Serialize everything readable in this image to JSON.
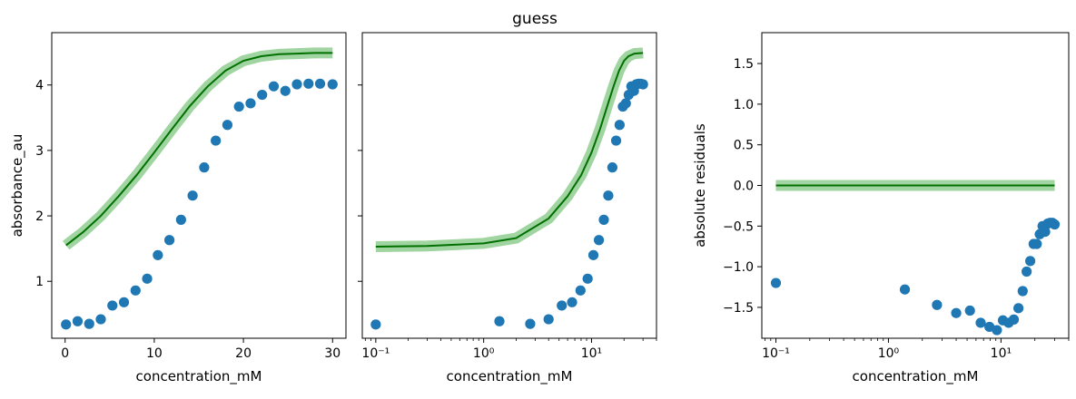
{
  "figure": {
    "title": "guess"
  },
  "colors": {
    "points": "#1f77b4",
    "fit_line": "#007000",
    "fit_band": "#2ca02c"
  },
  "chart_data": [
    {
      "type": "scatter",
      "title": "",
      "xlabel": "concentration_mM",
      "ylabel": "absorbance_au",
      "x_scale": "linear",
      "xlim": [
        -1.5,
        31.5
      ],
      "ylim": [
        0.13,
        4.8
      ],
      "x_ticks": [
        0,
        10,
        20,
        30
      ],
      "x_tick_labels": [
        "0",
        "10",
        "20",
        "30"
      ],
      "y_ticks": [
        1,
        2,
        3,
        4
      ],
      "y_tick_labels": [
        "1",
        "2",
        "3",
        "4"
      ],
      "series": [
        {
          "kind": "points",
          "x": [
            0.1,
            1.4,
            2.7,
            4.0,
            5.3,
            6.6,
            7.9,
            9.2,
            10.4,
            11.7,
            13.0,
            14.3,
            15.6,
            16.9,
            18.2,
            19.5,
            20.8,
            22.1,
            23.4,
            24.7,
            26.0,
            27.3,
            28.6,
            30.0
          ],
          "y": [
            0.34,
            0.39,
            0.35,
            0.42,
            0.63,
            0.68,
            0.86,
            1.04,
            1.4,
            1.63,
            1.94,
            2.31,
            2.74,
            3.15,
            3.39,
            3.67,
            3.72,
            3.85,
            3.98,
            3.91,
            4.01,
            4.02,
            4.02,
            4.01
          ]
        },
        {
          "kind": "fit",
          "x": [
            0.1,
            2,
            4,
            6,
            8,
            10,
            12,
            14,
            16,
            18,
            20,
            22,
            24,
            26,
            28,
            30
          ],
          "y": [
            1.55,
            1.75,
            2.0,
            2.3,
            2.62,
            2.97,
            3.33,
            3.68,
            3.98,
            4.22,
            4.37,
            4.44,
            4.47,
            4.48,
            4.49,
            4.49
          ]
        }
      ]
    },
    {
      "type": "scatter",
      "title": "guess",
      "xlabel": "concentration_mM",
      "ylabel": "",
      "x_scale": "log",
      "xlim": [
        0.075,
        40
      ],
      "ylim": [
        0.13,
        4.8
      ],
      "x_ticks": [
        0.1,
        1,
        10
      ],
      "x_tick_labels": [
        "10⁻¹",
        "10⁰",
        "10¹"
      ],
      "y_ticks": [
        1,
        2,
        3,
        4
      ],
      "y_tick_labels": [
        "",
        "",
        "",
        ""
      ],
      "series": [
        {
          "kind": "points",
          "x": [
            0.1,
            1.4,
            2.7,
            4.0,
            5.3,
            6.6,
            7.9,
            9.2,
            10.4,
            11.7,
            13.0,
            14.3,
            15.6,
            16.9,
            18.2,
            19.5,
            20.8,
            22.1,
            23.4,
            24.7,
            26.0,
            27.3,
            28.6,
            30.0
          ],
          "y": [
            0.34,
            0.39,
            0.35,
            0.42,
            0.63,
            0.68,
            0.86,
            1.04,
            1.4,
            1.63,
            1.94,
            2.31,
            2.74,
            3.15,
            3.39,
            3.67,
            3.72,
            3.85,
            3.98,
            3.91,
            4.01,
            4.02,
            4.02,
            4.01
          ]
        },
        {
          "kind": "fit",
          "x": [
            0.1,
            0.3,
            1,
            2,
            4,
            6,
            8,
            10,
            12,
            14,
            16,
            18,
            20,
            22,
            25,
            30
          ],
          "y": [
            1.53,
            1.54,
            1.58,
            1.66,
            1.96,
            2.3,
            2.62,
            2.97,
            3.33,
            3.68,
            3.98,
            4.22,
            4.37,
            4.44,
            4.48,
            4.49
          ]
        }
      ]
    },
    {
      "type": "scatter",
      "title": "",
      "xlabel": "concentration_mM",
      "ylabel": "absolute residuals",
      "x_scale": "log",
      "xlim": [
        0.075,
        40
      ],
      "ylim": [
        -1.88,
        1.88
      ],
      "x_ticks": [
        0.1,
        1,
        10
      ],
      "x_tick_labels": [
        "10⁻¹",
        "10⁰",
        "10¹"
      ],
      "y_ticks": [
        -1.5,
        -1.0,
        -0.5,
        0.0,
        0.5,
        1.0,
        1.5
      ],
      "y_tick_labels": [
        "−1.5",
        "−1.0",
        "−0.5",
        "0.0",
        "0.5",
        "1.0",
        "1.5"
      ],
      "series": [
        {
          "kind": "points",
          "x": [
            0.1,
            1.4,
            2.7,
            4.0,
            5.3,
            6.6,
            7.9,
            9.2,
            10.4,
            11.7,
            13.0,
            14.3,
            15.6,
            16.9,
            18.2,
            19.5,
            20.8,
            22.1,
            23.4,
            24.7,
            26.0,
            27.3,
            28.6,
            30.0
          ],
          "y": [
            -1.2,
            -1.28,
            -1.47,
            -1.57,
            -1.54,
            -1.69,
            -1.74,
            -1.78,
            -1.66,
            -1.69,
            -1.65,
            -1.51,
            -1.3,
            -1.06,
            -0.93,
            -0.72,
            -0.72,
            -0.6,
            -0.5,
            -0.57,
            -0.47,
            -0.46,
            -0.46,
            -0.48
          ]
        },
        {
          "kind": "fit",
          "x": [
            0.1,
            30
          ],
          "y": [
            0.0,
            0.0
          ]
        }
      ]
    }
  ]
}
